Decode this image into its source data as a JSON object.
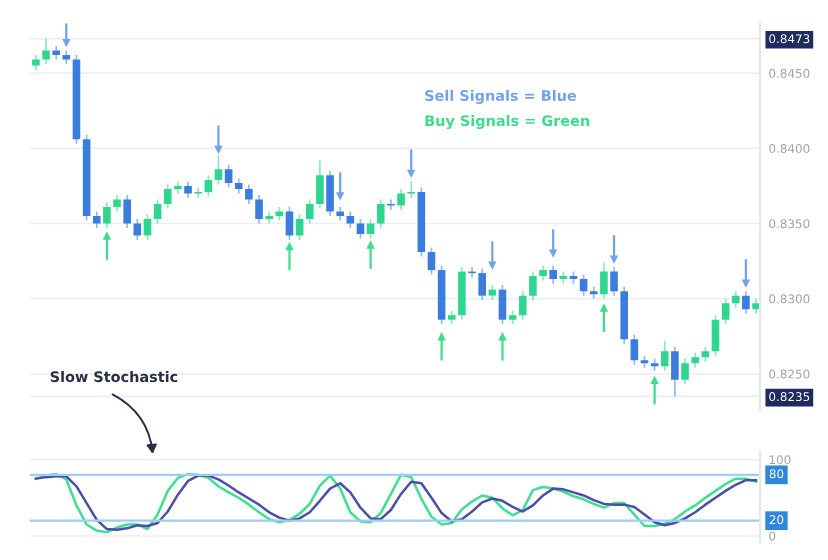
{
  "chart_data": [
    {
      "type": "candlestick",
      "tick_labels": "y",
      "grid": "y",
      "categories": [
        null,
        null,
        null,
        null,
        null,
        null,
        null,
        null,
        null,
        null,
        null,
        null,
        null,
        null,
        null,
        null,
        null,
        null,
        null,
        null,
        null,
        null,
        null,
        null,
        null,
        null,
        null,
        null,
        null,
        null,
        null,
        null,
        null,
        null,
        null,
        null,
        null,
        null,
        null,
        null,
        null,
        null,
        null,
        null,
        null,
        null,
        null,
        null,
        null,
        null,
        null,
        null,
        null,
        null,
        null,
        null,
        null,
        null,
        null,
        null,
        null,
        null,
        null,
        null,
        null,
        null,
        null,
        null,
        null,
        null,
        null,
        null
      ],
      "ohlc": [
        [
          0.8455,
          0.8462,
          0.8452,
          0.8459
        ],
        [
          0.8459,
          0.8473,
          0.8456,
          0.8465
        ],
        [
          0.8465,
          0.8468,
          0.8459,
          0.8462
        ],
        [
          0.8462,
          0.8465,
          0.8456,
          0.8459
        ],
        [
          0.8459,
          0.8462,
          0.8403,
          0.8406
        ],
        [
          0.8406,
          0.8409,
          0.8352,
          0.8355
        ],
        [
          0.8355,
          0.8358,
          0.8347,
          0.835
        ],
        [
          0.835,
          0.8364,
          0.8347,
          0.8361
        ],
        [
          0.8361,
          0.8369,
          0.8358,
          0.8366
        ],
        [
          0.8366,
          0.8369,
          0.8347,
          0.835
        ],
        [
          0.835,
          0.8353,
          0.8339,
          0.8342
        ],
        [
          0.8342,
          0.8356,
          0.8339,
          0.8353
        ],
        [
          0.8353,
          0.8366,
          0.835,
          0.8363
        ],
        [
          0.8363,
          0.8376,
          0.836,
          0.8373
        ],
        [
          0.8373,
          0.8378,
          0.837,
          0.8375
        ],
        [
          0.8375,
          0.8378,
          0.8367,
          0.837
        ],
        [
          0.837,
          0.8374,
          0.8367,
          0.8371
        ],
        [
          0.8371,
          0.8382,
          0.8368,
          0.8379
        ],
        [
          0.8379,
          0.8395,
          0.8376,
          0.8386
        ],
        [
          0.8386,
          0.8389,
          0.8374,
          0.8377
        ],
        [
          0.8377,
          0.838,
          0.837,
          0.8373
        ],
        [
          0.8373,
          0.8376,
          0.8363,
          0.8366
        ],
        [
          0.8366,
          0.8369,
          0.835,
          0.8353
        ],
        [
          0.8353,
          0.8358,
          0.835,
          0.8355
        ],
        [
          0.8355,
          0.8361,
          0.8352,
          0.8358
        ],
        [
          0.8358,
          0.8361,
          0.8339,
          0.8342
        ],
        [
          0.8342,
          0.8356,
          0.8339,
          0.8353
        ],
        [
          0.8353,
          0.8366,
          0.835,
          0.8363
        ],
        [
          0.8363,
          0.8392,
          0.836,
          0.8382
        ],
        [
          0.8382,
          0.8385,
          0.8355,
          0.8358
        ],
        [
          0.8358,
          0.8361,
          0.8352,
          0.8355
        ],
        [
          0.8355,
          0.8358,
          0.8347,
          0.835
        ],
        [
          0.835,
          0.8353,
          0.834,
          0.8343
        ],
        [
          0.8343,
          0.8353,
          0.834,
          0.835
        ],
        [
          0.835,
          0.8366,
          0.8347,
          0.8363
        ],
        [
          0.8363,
          0.8366,
          0.8359,
          0.8362
        ],
        [
          0.8362,
          0.8373,
          0.8359,
          0.837
        ],
        [
          0.837,
          0.8378,
          0.8367,
          0.8371
        ],
        [
          0.8371,
          0.8374,
          0.8328,
          0.8331
        ],
        [
          0.8331,
          0.8334,
          0.8316,
          0.8319
        ],
        [
          0.8319,
          0.8322,
          0.8283,
          0.8286
        ],
        [
          0.8286,
          0.8292,
          0.8283,
          0.8289
        ],
        [
          0.8289,
          0.8321,
          0.8286,
          0.8318
        ],
        [
          0.8318,
          0.8321,
          0.8314,
          0.8317
        ],
        [
          0.8317,
          0.832,
          0.8299,
          0.8302
        ],
        [
          0.8302,
          0.8309,
          0.8299,
          0.8306
        ],
        [
          0.8306,
          0.8309,
          0.8283,
          0.8286
        ],
        [
          0.8286,
          0.8292,
          0.8283,
          0.8289
        ],
        [
          0.8289,
          0.8305,
          0.8286,
          0.8302
        ],
        [
          0.8302,
          0.8318,
          0.8299,
          0.8315
        ],
        [
          0.8315,
          0.8322,
          0.8312,
          0.8319
        ],
        [
          0.8319,
          0.8322,
          0.831,
          0.8313
        ],
        [
          0.8313,
          0.8318,
          0.831,
          0.8315
        ],
        [
          0.8315,
          0.8318,
          0.831,
          0.8313
        ],
        [
          0.8313,
          0.8316,
          0.8302,
          0.8305
        ],
        [
          0.8305,
          0.8308,
          0.83,
          0.8303
        ],
        [
          0.8303,
          0.8324,
          0.83,
          0.8318
        ],
        [
          0.8318,
          0.8321,
          0.8302,
          0.8305
        ],
        [
          0.8305,
          0.8308,
          0.827,
          0.8273
        ],
        [
          0.8273,
          0.8276,
          0.8256,
          0.8259
        ],
        [
          0.8259,
          0.8262,
          0.8254,
          0.8257
        ],
        [
          0.8257,
          0.826,
          0.8252,
          0.8255
        ],
        [
          0.8255,
          0.8272,
          0.8252,
          0.8265
        ],
        [
          0.8265,
          0.8268,
          0.8235,
          0.8246
        ],
        [
          0.8246,
          0.826,
          0.8243,
          0.8257
        ],
        [
          0.8257,
          0.8264,
          0.8254,
          0.8261
        ],
        [
          0.8261,
          0.8268,
          0.8258,
          0.8265
        ],
        [
          0.8265,
          0.8289,
          0.8262,
          0.8286
        ],
        [
          0.8286,
          0.83,
          0.8283,
          0.8297
        ],
        [
          0.8297,
          0.8305,
          0.8294,
          0.8302
        ],
        [
          0.8302,
          0.8305,
          0.829,
          0.8293
        ],
        [
          0.8293,
          0.83,
          0.829,
          0.8297
        ]
      ],
      "colors": [
        "#2fd68f",
        "#2fd68f",
        "#3b7ddd",
        "#3b7ddd",
        "#3b7ddd",
        "#3b7ddd",
        "#3b7ddd",
        "#2fd68f",
        "#2fd68f",
        "#3b7ddd",
        "#3b7ddd",
        "#2fd68f",
        "#2fd68f",
        "#2fd68f",
        "#2fd68f",
        "#3b7ddd",
        "#2fd68f",
        "#2fd68f",
        "#2fd68f",
        "#3b7ddd",
        "#3b7ddd",
        "#3b7ddd",
        "#3b7ddd",
        "#2fd68f",
        "#2fd68f",
        "#3b7ddd",
        "#2fd68f",
        "#2fd68f",
        "#2fd68f",
        "#3b7ddd",
        "#3b7ddd",
        "#3b7ddd",
        "#3b7ddd",
        "#2fd68f",
        "#2fd68f",
        "#3b7ddd",
        "#2fd68f",
        "#2fd68f",
        "#3b7ddd",
        "#3b7ddd",
        "#3b7ddd",
        "#2fd68f",
        "#2fd68f",
        "#3b7ddd",
        "#3b7ddd",
        "#2fd68f",
        "#3b7ddd",
        "#2fd68f",
        "#2fd68f",
        "#2fd68f",
        "#2fd68f",
        "#3b7ddd",
        "#2fd68f",
        "#3b7ddd",
        "#3b7ddd",
        "#3b7ddd",
        "#2fd68f",
        "#3b7ddd",
        "#3b7ddd",
        "#3b7ddd",
        "#3b7ddd",
        "#3b7ddd",
        "#2fd68f",
        "#3b7ddd",
        "#2fd68f",
        "#2fd68f",
        "#2fd68f",
        "#2fd68f",
        "#2fd68f",
        "#2fd68f",
        "#3b7ddd",
        "#2fd68f"
      ],
      "series": [
        {
          "type": "scatter",
          "marker": "triangle",
          "color": "#6fa3ea",
          "values": [
            null,
            null,
            null,
            0.847,
            null,
            null,
            null,
            null,
            null,
            null,
            null,
            null,
            null,
            null,
            null,
            null,
            null,
            null,
            0.8399,
            null,
            null,
            null,
            null,
            null,
            null,
            null,
            null,
            null,
            null,
            null,
            0.8368,
            null,
            null,
            null,
            null,
            null,
            null,
            0.8383,
            null,
            null,
            null,
            null,
            null,
            null,
            null,
            0.8322,
            null,
            null,
            null,
            null,
            null,
            0.833,
            null,
            null,
            null,
            null,
            null,
            0.8326,
            null,
            null,
            null,
            null,
            null,
            null,
            null,
            null,
            null,
            null,
            null,
            null,
            0.831,
            null
          ]
        },
        {
          "type": "scatter",
          "marker": "triangle",
          "color": "#3ddc8a",
          "values": [
            null,
            null,
            null,
            null,
            null,
            null,
            null,
            0.8342,
            null,
            null,
            null,
            null,
            null,
            null,
            null,
            null,
            null,
            null,
            null,
            null,
            null,
            null,
            null,
            null,
            null,
            0.8335,
            null,
            null,
            null,
            null,
            null,
            null,
            null,
            0.8336,
            null,
            null,
            null,
            null,
            null,
            null,
            0.8275,
            null,
            null,
            null,
            null,
            null,
            0.8275,
            null,
            null,
            null,
            null,
            null,
            null,
            null,
            null,
            null,
            0.8294,
            null,
            null,
            null,
            null,
            0.8246,
            null,
            null,
            null,
            null,
            null,
            null,
            null,
            null,
            null,
            null
          ]
        }
      ],
      "ylim": [
        0.8226,
        0.8483
      ],
      "yticks": [
        {
          "value": 0.8473,
          "label": "0.8473"
        },
        {
          "value": 0.845,
          "label": "0.8450"
        },
        {
          "value": 0.84,
          "label": "0.8400"
        },
        {
          "value": 0.835,
          "label": "0.8350"
        },
        {
          "value": 0.83,
          "label": "0.8300"
        },
        {
          "value": 0.825,
          "label": "0.8250"
        },
        {
          "value": 0.8235,
          "label": "0.8235"
        }
      ],
      "annotations": [
        "Sell Signals = Blue",
        "Buy Signals = Green"
      ]
    },
    {
      "type": "line",
      "tick_labels": "y",
      "grid": "y",
      "marker": "none",
      "line_style": "solid",
      "categories": [
        null,
        null,
        null,
        null,
        null,
        null,
        null,
        null,
        null,
        null,
        null,
        null,
        null,
        null,
        null,
        null,
        null,
        null,
        null,
        null,
        null,
        null,
        null,
        null,
        null,
        null,
        null,
        null,
        null,
        null,
        null,
        null,
        null,
        null,
        null,
        null,
        null,
        null,
        null,
        null,
        null,
        null,
        null,
        null,
        null,
        null,
        null,
        null,
        null,
        null,
        null,
        null,
        null,
        null,
        null,
        null,
        null,
        null,
        null,
        null,
        null,
        null,
        null,
        null,
        null,
        null,
        null,
        null,
        null,
        null,
        null,
        null
      ],
      "series": [
        {
          "color": "#3ee08f",
          "values": [
            75,
            79,
            81,
            74,
            40,
            15,
            7,
            5,
            11,
            15,
            15,
            9,
            28,
            59,
            76,
            81,
            80,
            76,
            65,
            57,
            50,
            41,
            31,
            22,
            18,
            21,
            29,
            42,
            66,
            79,
            62,
            31,
            19,
            18,
            30,
            55,
            80,
            77,
            49,
            25,
            15,
            17,
            35,
            45,
            53,
            50,
            36,
            27,
            34,
            60,
            64,
            62,
            58,
            52,
            48,
            42,
            37,
            43,
            43,
            28,
            13,
            13,
            16,
            22,
            32,
            40,
            50,
            59,
            68,
            75,
            75,
            71
          ]
        },
        {
          "color": "#4b4fa8",
          "values": [
            75,
            77,
            78,
            78,
            65,
            43,
            21,
            9,
            8,
            10,
            14,
            13,
            17,
            32,
            54,
            72,
            79,
            79,
            74,
            66,
            57,
            49,
            41,
            31,
            24,
            20,
            23,
            31,
            46,
            62,
            69,
            57,
            37,
            23,
            22,
            34,
            55,
            71,
            69,
            50,
            30,
            19,
            22,
            32,
            44,
            49,
            46,
            38,
            32,
            40,
            53,
            62,
            61,
            57,
            53,
            47,
            42,
            41,
            41,
            38,
            28,
            18,
            14,
            17,
            23,
            31,
            41,
            50,
            59,
            67,
            73,
            73
          ]
        }
      ],
      "ylim": [
        -8,
        110
      ],
      "yticks": [
        0,
        100
      ],
      "ref_lines": [
        {
          "axis": "y",
          "value": 80,
          "label": "80",
          "color": "#9fcdf5"
        },
        {
          "axis": "y",
          "value": 20,
          "label": "20",
          "color": "#9fcdf5"
        }
      ],
      "annotations": [
        "Slow Stochastic"
      ]
    }
  ]
}
